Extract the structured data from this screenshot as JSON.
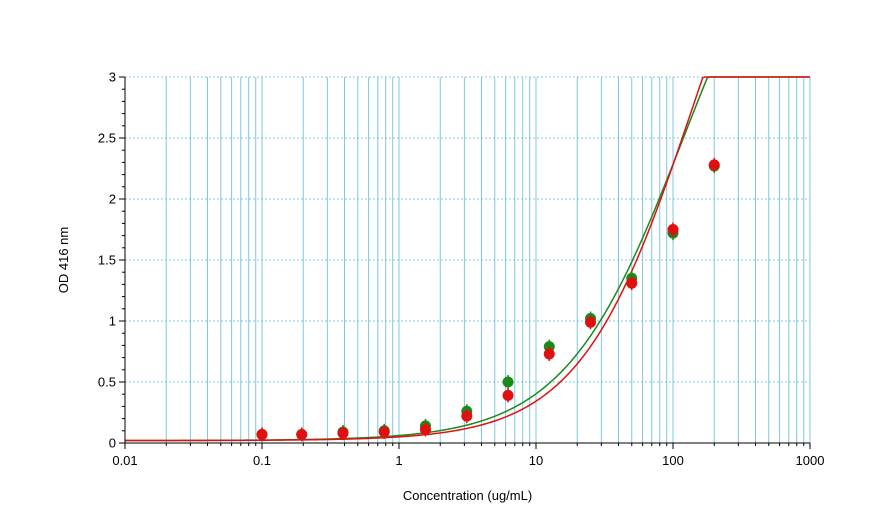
{
  "chart_data": {
    "type": "scatter",
    "title": "",
    "xlabel": "Concentration (ug/mL)",
    "ylabel": "OD 416 nm",
    "x_scale": "log",
    "xlim": [
      0.01,
      1000
    ],
    "ylim": [
      0,
      3
    ],
    "grid": true,
    "x_tick_labels": [
      "0.01",
      "0.1",
      "1",
      "10",
      "100",
      "1000"
    ],
    "y_tick_labels": [
      "0",
      "0.5",
      "1",
      "1.5",
      "2",
      "2.5",
      "3"
    ],
    "series": [
      {
        "color": "#1a8a1a",
        "x": [
          0.1,
          0.195,
          0.39,
          0.78,
          1.56,
          3.125,
          6.25,
          12.5,
          25,
          50,
          100,
          200
        ],
        "y": [
          0.07,
          0.07,
          0.09,
          0.1,
          0.14,
          0.26,
          0.5,
          0.79,
          1.02,
          1.35,
          1.72,
          2.27
        ],
        "fit": {
          "a": 0.02,
          "b": 1.0,
          "c": 120,
          "d": 5.0
        }
      },
      {
        "color": "#e01010",
        "x": [
          0.1,
          0.195,
          0.39,
          0.78,
          1.56,
          3.125,
          6.25,
          12.5,
          25,
          50,
          100,
          200
        ],
        "y": [
          0.07,
          0.07,
          0.08,
          0.09,
          0.11,
          0.22,
          0.39,
          0.73,
          0.99,
          1.31,
          1.75,
          2.28
        ],
        "fit": {
          "a": 0.02,
          "b": 1.05,
          "c": 140,
          "d": 5.5
        }
      }
    ]
  }
}
